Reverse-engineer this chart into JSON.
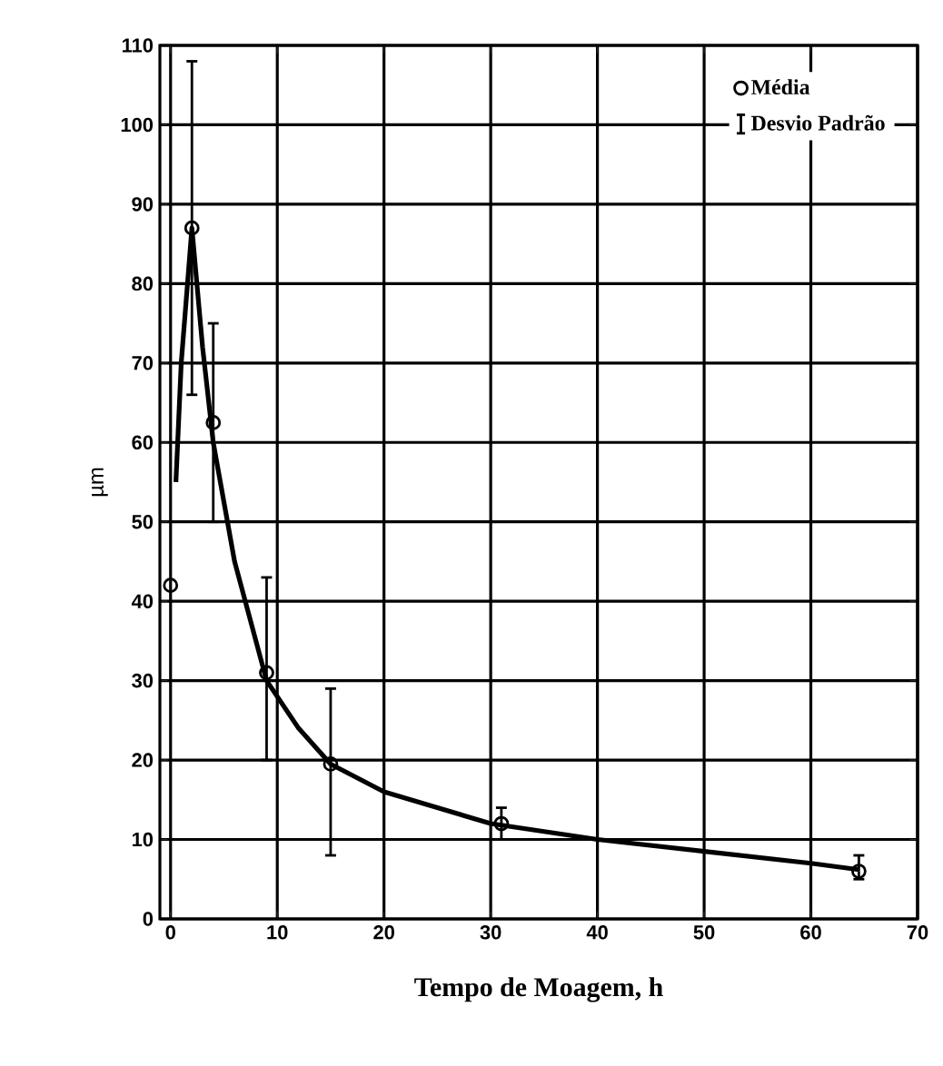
{
  "chart_data": {
    "type": "scatter",
    "xlabel": "Tempo de Moagem, h",
    "ylabel": "µm",
    "xlim": [
      -1,
      70
    ],
    "ylim": [
      0,
      110
    ],
    "xticks": [
      0,
      10,
      20,
      30,
      40,
      50,
      60,
      70
    ],
    "yticks": [
      0,
      10,
      20,
      30,
      40,
      50,
      60,
      70,
      80,
      90,
      100,
      110
    ],
    "grid": true,
    "legend": "top right",
    "marker": "circle",
    "annotations": [
      "Desvio Padrão"
    ],
    "series": [
      {
        "name": "Média",
        "color": "#000000",
        "x": [
          0,
          2,
          4,
          9,
          15,
          31,
          64.5
        ],
        "values": [
          42,
          87,
          62.5,
          31,
          19.5,
          12,
          6
        ],
        "errors": [
          null,
          [
            66,
            108
          ],
          [
            50,
            75
          ],
          [
            20,
            43
          ],
          [
            8,
            29
          ],
          [
            10,
            14
          ],
          [
            5,
            8
          ]
        ]
      },
      {
        "type": "line",
        "color": "#000000",
        "marker": "none",
        "line_style": "solid",
        "x": [
          0.5,
          1,
          2,
          3,
          4,
          6,
          9,
          12,
          15,
          20,
          30,
          40,
          50,
          60,
          64.5
        ],
        "values": [
          55,
          70,
          87,
          72,
          60,
          45,
          30,
          24,
          19.5,
          16,
          12,
          10,
          8.5,
          7,
          6.2
        ]
      }
    ]
  }
}
